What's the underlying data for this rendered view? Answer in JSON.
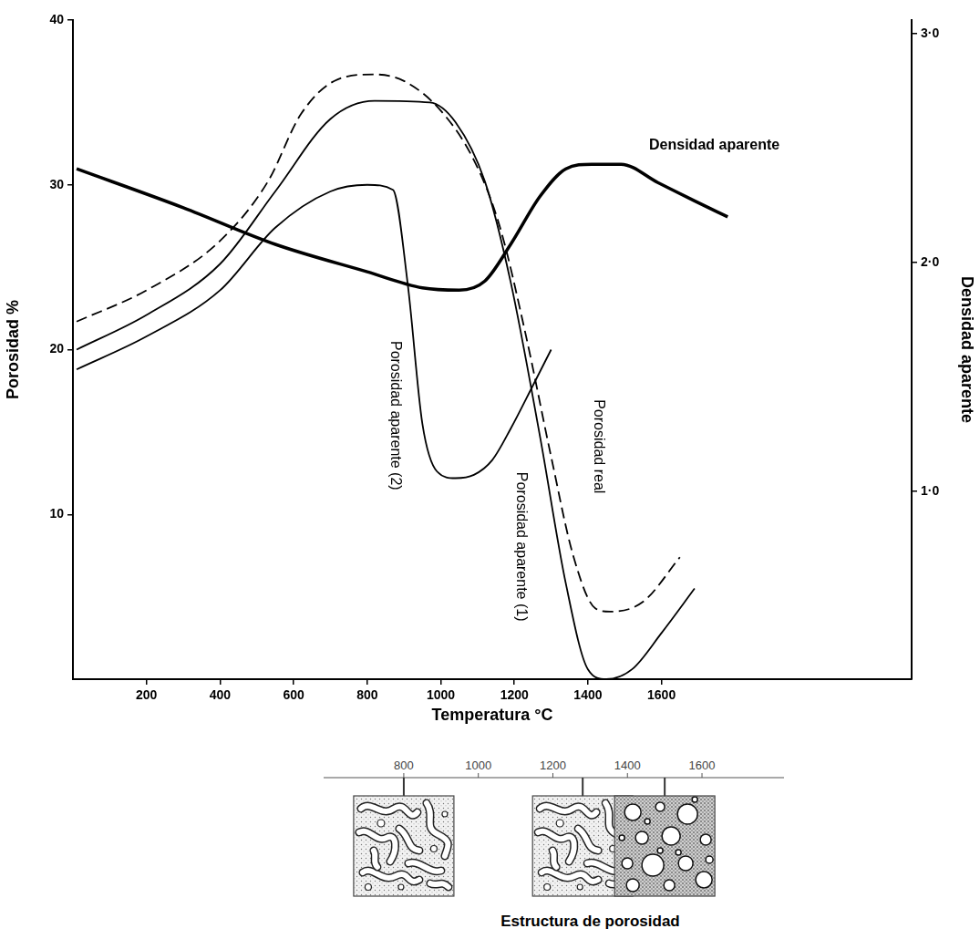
{
  "chart_data": {
    "type": "line",
    "xlabel": "Temperatura °C",
    "ylabel": "Porosidad %",
    "y2label": "Densidad aparente",
    "xlim": [
      0,
      2280
    ],
    "xticks": [
      200,
      400,
      600,
      800,
      1000,
      1200,
      1400,
      1600
    ],
    "ylim": [
      0,
      40
    ],
    "yticks": [
      10,
      20,
      30,
      40
    ],
    "y2lim": [
      0.18,
      3.06
    ],
    "y2ticks": [
      {
        "value": 1,
        "label": "1·0"
      },
      {
        "value": 2,
        "label": "2·0"
      },
      {
        "value": 3,
        "label": "3·0"
      }
    ],
    "grid": false,
    "series": [
      {
        "name": "Densidad aparente",
        "color": "#000000",
        "line_style": "solid",
        "axis": "y2",
        "x": [
          10,
          300,
          550,
          800,
          950,
          1050,
          1120,
          1190,
          1270,
          1340,
          1410,
          1490,
          1590,
          1690,
          1780
        ],
        "values": [
          2.41,
          2.24,
          2.08,
          1.96,
          1.89,
          1.88,
          1.92,
          2.08,
          2.29,
          2.41,
          2.43,
          2.43,
          2.35,
          2.27,
          2.2
        ]
      },
      {
        "name": "Porosidad aparente (2)",
        "color": "#000000",
        "line_style": "solid",
        "x": [
          10,
          200,
          400,
          550,
          700,
          800,
          870,
          910,
          950,
          990,
          1040,
          1090,
          1140,
          1190,
          1250,
          1300
        ],
        "values": [
          18.8,
          20.8,
          23.6,
          27.4,
          29.6,
          30,
          29.7,
          24,
          15.5,
          12.6,
          12.2,
          12.4,
          13.3,
          15.2,
          17.8,
          20
        ]
      },
      {
        "name": "Porosidad aparente (1)",
        "color": "#000000",
        "line_style": "solid",
        "x": [
          10,
          200,
          400,
          550,
          700,
          820,
          970,
          1040,
          1120,
          1190,
          1270,
          1340,
          1400,
          1450,
          1520,
          1600,
          1690
        ],
        "values": [
          20,
          22.1,
          25.2,
          29.6,
          34,
          35.1,
          35,
          33.8,
          30.2,
          24.1,
          14.7,
          5.8,
          0.6,
          0,
          0.6,
          2.8,
          5.5
        ]
      },
      {
        "name": "Porosidad real",
        "color": "#000000",
        "line_style": "dashed",
        "x": [
          10,
          200,
          400,
          530,
          620,
          720,
          820,
          900,
          1000,
          1090,
          1160,
          1230,
          1300,
          1360,
          1420,
          1460,
          1550,
          1650
        ],
        "values": [
          21.7,
          23.6,
          26.6,
          30.2,
          34.3,
          36.4,
          36.7,
          36.3,
          34.5,
          31.5,
          27.5,
          21,
          13.5,
          7.5,
          4.3,
          4.1,
          4.7,
          7.4
        ]
      }
    ]
  },
  "inset": {
    "title": "Estructura de porosidad",
    "xlim": [
      585,
      1820
    ],
    "xticks": [
      800,
      1000,
      1200,
      1400,
      1600
    ],
    "samples": [
      800,
      1280,
      1500
    ]
  }
}
